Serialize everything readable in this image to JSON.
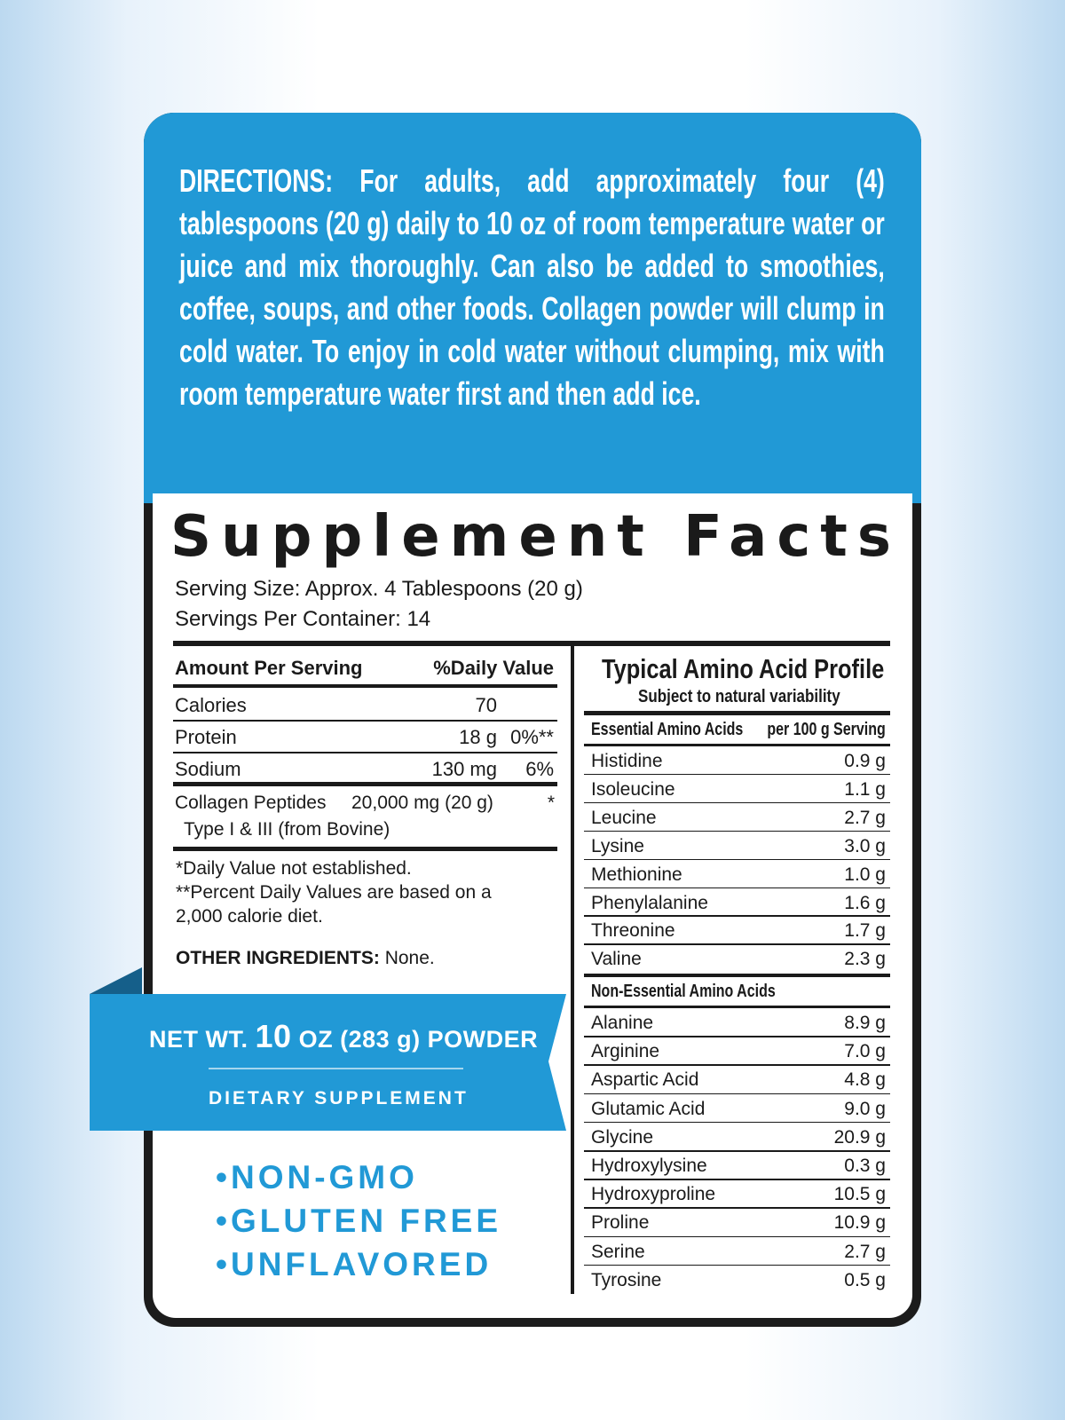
{
  "directions": "DIRECTIONS: For adults, add approximately four (4) tablespoons (20 g) daily to 10 oz of room temperature water or juice and mix thoroughly. Can also be added to smoothies, coffee, soups, and other foods. Collagen powder will clump in cold water. To enjoy in cold water without clumping, mix with room temperature water first and then add ice.",
  "facts": {
    "title": "Supplement Facts",
    "serving_size": "Serving Size: Approx. 4 Tablespoons (20 g)",
    "servings_per_container": "Servings Per Container: 14",
    "header": [
      "Amount Per Serving",
      "%Daily Value"
    ],
    "rows": [
      [
        "Calories",
        "70",
        ""
      ],
      [
        "Protein",
        "18 g",
        "0%**"
      ],
      [
        "Sodium",
        "130 mg",
        "6%"
      ]
    ],
    "collagen": {
      "name": "Collagen Peptides",
      "amount": "20,000 mg (20 g)",
      "dv": "*",
      "sub": "Type I & III (from Bovine)"
    },
    "footnotes": [
      "*Daily Value not established.",
      "**Percent Daily Values are based on a",
      "2,000 calorie diet."
    ],
    "other_label": "OTHER INGREDIENTS:",
    "other_value": "None."
  },
  "ribbon": {
    "net_prefix": "NET WT.",
    "net_amount": "10",
    "net_suffix": "OZ (283 g) POWDER",
    "subtitle": "DIETARY SUPPLEMENT"
  },
  "badges": [
    "NON-GMO",
    "GLUTEN FREE",
    "UNFLAVORED"
  ],
  "amino": {
    "title": "Typical Amino Acid Profile",
    "subtitle": "Subject to natural variability",
    "header": [
      "Essential Amino Acids",
      "per 100 g Serving"
    ],
    "essential": [
      [
        "Histidine",
        "0.9 g"
      ],
      [
        "Isoleucine",
        "1.1 g"
      ],
      [
        "Leucine",
        "2.7 g"
      ],
      [
        "Lysine",
        "3.0 g"
      ],
      [
        "Methionine",
        "1.0 g"
      ],
      [
        "Phenylalanine",
        "1.6 g"
      ],
      [
        "Threonine",
        "1.7 g"
      ],
      [
        "Valine",
        "2.3 g"
      ]
    ],
    "nonessential_header": "Non-Essential Amino Acids",
    "nonessential": [
      [
        "Alanine",
        "8.9 g"
      ],
      [
        "Arginine",
        "7.0 g"
      ],
      [
        "Aspartic Acid",
        "4.8 g"
      ],
      [
        "Glutamic Acid",
        "9.0 g"
      ],
      [
        "Glycine",
        "20.9 g"
      ],
      [
        "Hydroxylysine",
        "0.3 g"
      ],
      [
        "Hydroxyproline",
        "10.5 g"
      ],
      [
        "Proline",
        "10.9 g"
      ],
      [
        "Serine",
        "2.7 g"
      ],
      [
        "Tyrosine",
        "0.5 g"
      ]
    ]
  }
}
